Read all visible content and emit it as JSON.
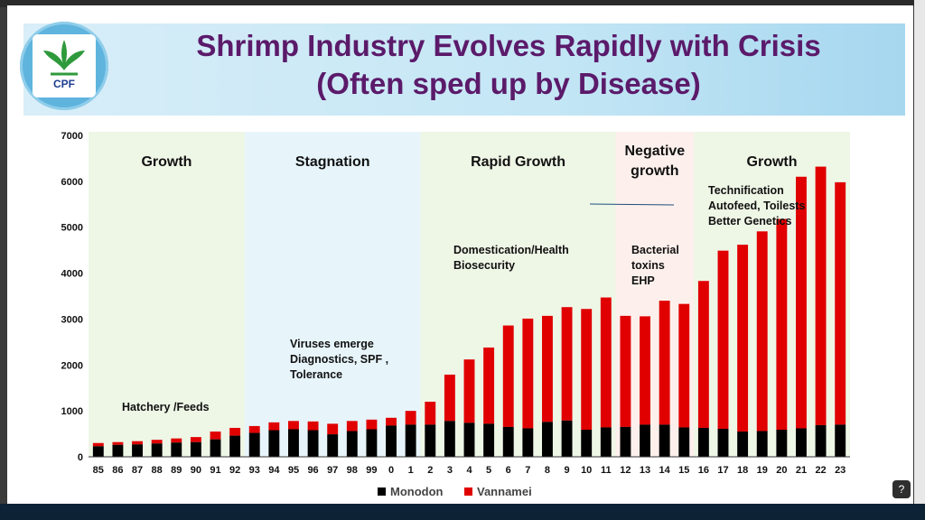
{
  "title": {
    "line1": "Shrimp Industry Evolves Rapidly with Crisis",
    "line2": "(Often sped up by Disease)"
  },
  "logo": {
    "text": "CPF"
  },
  "help": {
    "glyph": "?"
  },
  "colors": {
    "monodon": "#000000",
    "vannamei": "#e00000",
    "growth_bg": "#eef6e6",
    "stagnation_bg": "#e7f5fb",
    "negative_bg": "#fdf0ec",
    "title_text": "#5b1a6a"
  },
  "chart_data": {
    "type": "bar",
    "stacked": true,
    "categories": [
      "85",
      "86",
      "87",
      "88",
      "89",
      "90",
      "91",
      "92",
      "93",
      "94",
      "95",
      "96",
      "97",
      "98",
      "99",
      "0",
      "1",
      "2",
      "3",
      "4",
      "5",
      "6",
      "7",
      "8",
      "9",
      "10",
      "11",
      "12",
      "13",
      "14",
      "15",
      "16",
      "17",
      "18",
      "19",
      "20",
      "21",
      "22",
      "23"
    ],
    "series": [
      {
        "name": "Monodon",
        "values": [
          230,
          260,
          270,
          290,
          310,
          320,
          380,
          460,
          520,
          580,
          600,
          580,
          490,
          560,
          600,
          680,
          700,
          700,
          780,
          740,
          720,
          650,
          620,
          760,
          790,
          590,
          640,
          650,
          700,
          700,
          640,
          630,
          610,
          550,
          560,
          590,
          620,
          690,
          700
        ]
      },
      {
        "name": "Vannamei",
        "values": [
          70,
          60,
          70,
          80,
          90,
          110,
          170,
          170,
          150,
          170,
          180,
          190,
          230,
          220,
          210,
          170,
          300,
          500,
          1010,
          1380,
          1660,
          2210,
          2390,
          2310,
          2470,
          2630,
          2830,
          2420,
          2360,
          2700,
          2690,
          3200,
          3880,
          4070,
          4350,
          4590,
          5480,
          5630,
          5280
        ]
      }
    ],
    "ylim": [
      0,
      7000
    ],
    "yticks": [
      0,
      1000,
      2000,
      3000,
      4000,
      5000,
      6000,
      7000
    ],
    "legend": [
      "Monodon",
      "Vannamei"
    ],
    "legend_position": "bottom-center",
    "phases": [
      {
        "label": "Growth",
        "from": "85",
        "to": "92",
        "style": "growth"
      },
      {
        "label": "Stagnation",
        "from": "93",
        "to": "1",
        "style": "stagnation"
      },
      {
        "label": "Rapid Growth",
        "from": "2",
        "to": "11",
        "style": "growth"
      },
      {
        "label_line1": "Negative",
        "label_line2": "growth",
        "from": "12",
        "to": "15",
        "style": "negative"
      },
      {
        "label": "Growth",
        "from": "16",
        "to": "23",
        "style": "growth"
      }
    ],
    "annotations": {
      "hatchery": "Hatchery /Feeds",
      "viruses": [
        "Viruses emerge",
        "Diagnostics, SPF ,",
        " Tolerance"
      ],
      "domestication": [
        "Domestication/Health",
        "Biosecurity"
      ],
      "bacterial": [
        "Bacterial",
        "toxins",
        "EHP"
      ],
      "technification": [
        "Technification",
        "Autofeed, Toilests",
        "Better Genetics"
      ]
    }
  }
}
